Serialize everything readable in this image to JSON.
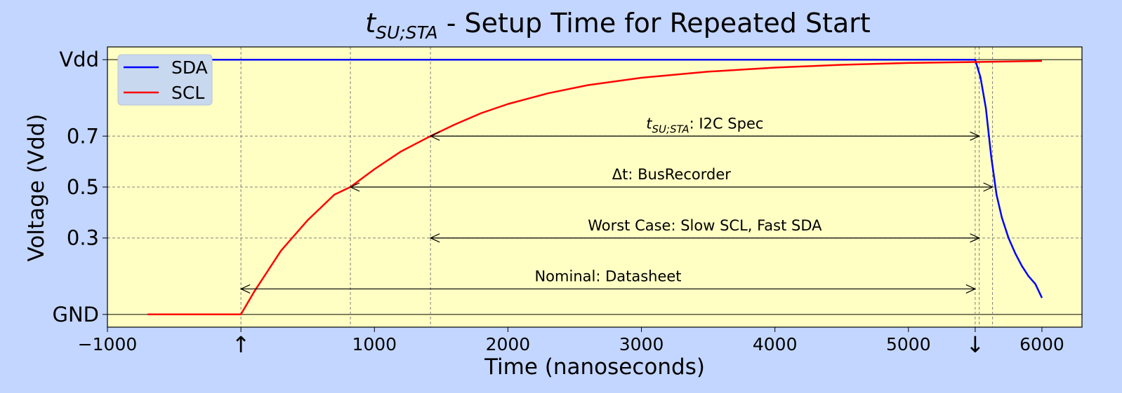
{
  "chart_data": {
    "type": "line",
    "title": {
      "main": "t",
      "sub": "SU;STA",
      "rest": " - Setup Time for Repeated Start"
    },
    "xlabel": "Time (nanoseconds)",
    "ylabel": "Voltage (Vdd)",
    "xlim": [
      -1000,
      6300
    ],
    "ylim": [
      -0.05,
      1.05
    ],
    "x_ticks": [
      {
        "value": -1000,
        "label": "−1000"
      },
      {
        "value": 1000,
        "label": "1000"
      },
      {
        "value": 2000,
        "label": "2000"
      },
      {
        "value": 3000,
        "label": "3000"
      },
      {
        "value": 4000,
        "label": "4000"
      },
      {
        "value": 5000,
        "label": "5000"
      },
      {
        "value": 6000,
        "label": "6000"
      }
    ],
    "x_markers": [
      {
        "value": 0,
        "label": "↑"
      },
      {
        "value": 5500,
        "label": "↓"
      }
    ],
    "y_ticks": [
      {
        "value": 0,
        "label": "GND"
      },
      {
        "value": 0.3,
        "label": "0.3"
      },
      {
        "value": 0.5,
        "label": "0.5"
      },
      {
        "value": 0.7,
        "label": "0.7"
      },
      {
        "value": 1,
        "label": "Vdd"
      }
    ],
    "grid": true,
    "legend_position": "upper-left",
    "series": [
      {
        "name": "SDA",
        "color": "#0000ff",
        "points": [
          [
            -700,
            1.0
          ],
          [
            5500,
            1.0
          ],
          [
            5540,
            0.93
          ],
          [
            5580,
            0.81
          ],
          [
            5620,
            0.62
          ],
          [
            5660,
            0.47
          ],
          [
            5700,
            0.38
          ],
          [
            5750,
            0.3
          ],
          [
            5800,
            0.24
          ],
          [
            5850,
            0.19
          ],
          [
            5900,
            0.15
          ],
          [
            5950,
            0.12
          ],
          [
            6000,
            0.065
          ]
        ]
      },
      {
        "name": "SCL",
        "color": "#ff0000",
        "points": [
          [
            -700,
            0.0
          ],
          [
            0,
            0.0
          ],
          [
            100,
            0.09
          ],
          [
            200,
            0.17
          ],
          [
            300,
            0.25
          ],
          [
            400,
            0.31
          ],
          [
            500,
            0.37
          ],
          [
            600,
            0.42
          ],
          [
            700,
            0.47
          ],
          [
            820,
            0.5
          ],
          [
            1000,
            0.57
          ],
          [
            1200,
            0.64
          ],
          [
            1420,
            0.7
          ],
          [
            1600,
            0.745
          ],
          [
            1800,
            0.79
          ],
          [
            2000,
            0.826
          ],
          [
            2300,
            0.868
          ],
          [
            2600,
            0.9
          ],
          [
            3000,
            0.929
          ],
          [
            3500,
            0.953
          ],
          [
            4000,
            0.969
          ],
          [
            4500,
            0.98
          ],
          [
            5000,
            0.987
          ],
          [
            5500,
            0.991
          ],
          [
            6000,
            0.995
          ]
        ]
      }
    ],
    "vlines": [
      0,
      820,
      1420,
      5500,
      5530,
      5630
    ],
    "annotations": [
      {
        "label_main": "t",
        "label_sub": "SU;STA",
        "label_rest": ": I2C Spec",
        "x_start": 1420,
        "x_end": 5530,
        "y": 0.7,
        "text_y": 0.73
      },
      {
        "label_main": "Δt: BusRecorder",
        "label_sub": "",
        "label_rest": "",
        "x_start": 820,
        "x_end": 5630,
        "y": 0.5,
        "text_y": 0.53
      },
      {
        "label_main": "Worst Case: Slow SCL, Fast SDA",
        "label_sub": "",
        "label_rest": "",
        "x_start": 1420,
        "x_end": 5530,
        "y": 0.3,
        "text_y": 0.33
      },
      {
        "label_main": "Nominal: Datasheet",
        "label_sub": "",
        "label_rest": "",
        "x_start": 0,
        "x_end": 5500,
        "y": 0.1,
        "text_y": 0.13
      }
    ],
    "colors": {
      "figure_bg": "#c3d6ff",
      "plot_bg": "#ffffc4",
      "grid": "#808080",
      "legend_bg": "#c8d8ee"
    }
  }
}
